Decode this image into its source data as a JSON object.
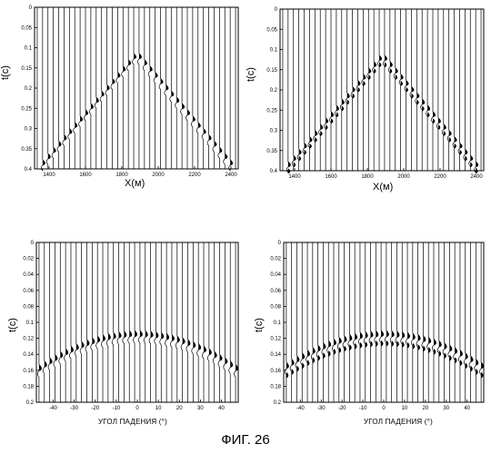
{
  "figure": {
    "caption": "ФИГ. 26"
  },
  "chart_data": [
    {
      "type": "seismic-gather",
      "panel": "top-left",
      "xlabel": "X(м)",
      "ylabel": "t(с)",
      "xticks": [
        "1400",
        "1600",
        "1800",
        "2000",
        "2200",
        "2400"
      ],
      "yticks": [
        "0",
        "0.05",
        "0.1",
        "0.15",
        "0.2",
        "0.25",
        "0.3",
        "0.35",
        "0.4"
      ],
      "xlim": [
        1320,
        2440
      ],
      "ylim": [
        0,
        0.4
      ],
      "trace_count": 38,
      "event": {
        "shape": "hyperbola-apex",
        "apex_x": 1880,
        "apex_t": 0.12,
        "edge_t": 0.4,
        "branches": 1
      }
    },
    {
      "type": "seismic-gather",
      "panel": "top-right",
      "xlabel": "X(м)",
      "ylabel": "t(с)",
      "xticks": [
        "1400",
        "1600",
        "1800",
        "2000",
        "2200",
        "2400"
      ],
      "yticks": [
        "0",
        "0.05",
        "0.1",
        "0.15",
        "0.2",
        "0.25",
        "0.3",
        "0.35",
        "0.4"
      ],
      "xlim": [
        1320,
        2440
      ],
      "ylim": [
        0,
        0.4
      ],
      "trace_count": 38,
      "event": {
        "shape": "hyperbola-apex",
        "apex_x": 1880,
        "apex_t": 0.12,
        "edge_t": 0.4,
        "branches": 2
      }
    },
    {
      "type": "seismic-gather",
      "panel": "bottom-left",
      "xlabel": "УГОЛ ПАДЕНИЯ (°)",
      "ylabel": "t(с)",
      "xticks": [
        "-40",
        "-30",
        "-20",
        "-10",
        "0",
        "10",
        "20",
        "30",
        "40"
      ],
      "yticks": [
        "0",
        "0.02",
        "0.04",
        "0.06",
        "0.08",
        "0.1",
        "0.12",
        "0.14",
        "0.16",
        "0.18",
        "0.2"
      ],
      "xlim": [
        -48,
        48
      ],
      "ylim": [
        0,
        0.2
      ],
      "trace_count": 38,
      "event": {
        "shape": "arc",
        "apex_x": 0,
        "apex_t": 0.118,
        "edge_t": 0.163,
        "branches": 1
      }
    },
    {
      "type": "seismic-gather",
      "panel": "bottom-right",
      "xlabel": "УГОЛ ПАДЕНИЯ (°)",
      "ylabel": "t(с)",
      "xticks": [
        "-40",
        "-30",
        "-20",
        "-10",
        "0",
        "10",
        "20",
        "30",
        "40"
      ],
      "yticks": [
        "0",
        "0.02",
        "0.04",
        "0.06",
        "0.08",
        "0.1",
        "0.12",
        "0.14",
        "0.16",
        "0.18",
        "0.2"
      ],
      "xlim": [
        -48,
        48
      ],
      "ylim": [
        0,
        0.2
      ],
      "trace_count": 38,
      "event": {
        "shape": "arc-split",
        "apex_x": 0,
        "apex_t": 0.118,
        "edge_t": 0.16,
        "branches": 2
      }
    }
  ]
}
